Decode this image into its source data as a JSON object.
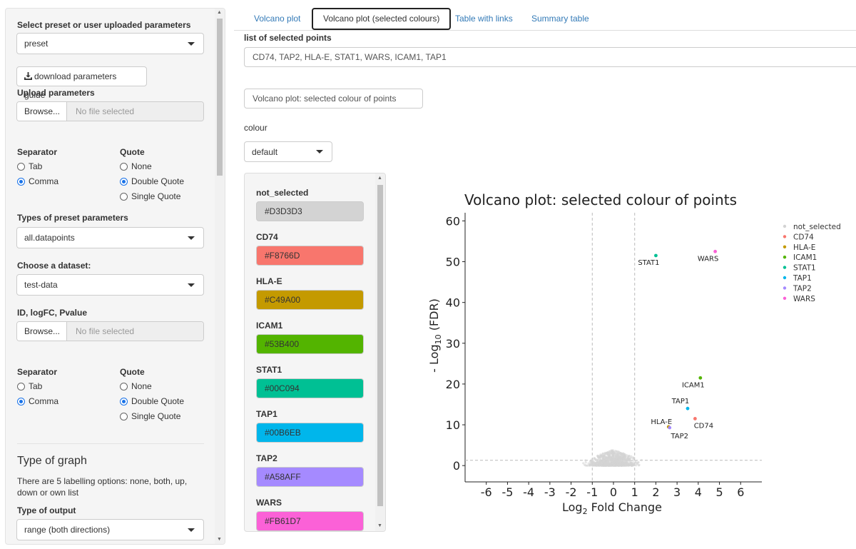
{
  "sidebar": {
    "preset_label": "Select preset or user uploaded parameters",
    "preset_value": "preset",
    "download_button": "download parameters guide",
    "upload_label": "Upload parameters",
    "browse_label": "Browse...",
    "no_file": "No file selected",
    "separator_label": "Separator",
    "quote_label": "Quote",
    "sep_tab": "Tab",
    "sep_comma": "Comma",
    "quote_none": "None",
    "quote_double": "Double Quote",
    "quote_single": "Single Quote",
    "types_label": "Types of preset parameters",
    "types_value": "all.datapoints",
    "dataset_label": "Choose a dataset:",
    "dataset_value": "test-data",
    "idfc_label": "ID, logFC, Pvalue",
    "graph_heading": "Type of graph",
    "graph_help": "There are 5 labelling options: none, both, up, down or own list",
    "output_label": "Type of output",
    "output_value": "range (both directions)"
  },
  "tabs": [
    {
      "label": "Volcano plot"
    },
    {
      "label": "Volcano plot (selected colours)"
    },
    {
      "label": "Table with links"
    },
    {
      "label": "Summary table"
    }
  ],
  "main": {
    "selected_points_label": "list of selected points",
    "selected_points_value": "CD74, TAP2, HLA-E, STAT1, WARS, ICAM1, TAP1",
    "title_input_value": "Volcano plot: selected colour of points",
    "colour_label": "colour",
    "colour_value": "default",
    "colour_items": [
      {
        "name": "not_selected",
        "hex": "#D3D3D3"
      },
      {
        "name": "CD74",
        "hex": "#F8766D"
      },
      {
        "name": "HLA-E",
        "hex": "#C49A00"
      },
      {
        "name": "ICAM1",
        "hex": "#53B400"
      },
      {
        "name": "STAT1",
        "hex": "#00C094"
      },
      {
        "name": "TAP1",
        "hex": "#00B6EB"
      },
      {
        "name": "TAP2",
        "hex": "#A58AFF"
      },
      {
        "name": "WARS",
        "hex": "#FB61D7"
      }
    ]
  },
  "chart_data": {
    "type": "scatter",
    "title": "Volcano plot: selected colour of points",
    "xlabel": "Log2 Fold Change",
    "ylabel": "- Log10 (FDR)",
    "xlim": [
      -7,
      7
    ],
    "ylim": [
      -4,
      62
    ],
    "x_ticks": [
      -6,
      -5,
      -4,
      -3,
      -2,
      -1,
      0,
      1,
      2,
      3,
      4,
      5,
      6
    ],
    "y_ticks": [
      0,
      10,
      20,
      30,
      40,
      50,
      60
    ],
    "threshold_lines": {
      "x": [
        -1,
        1
      ],
      "y": 1.3
    },
    "grid": false,
    "legend_position": "right",
    "legend": [
      "not_selected",
      "CD74",
      "HLA-E",
      "ICAM1",
      "STAT1",
      "TAP1",
      "TAP2",
      "WARS"
    ],
    "colors": {
      "not_selected": "#D3D3D3",
      "CD74": "#F8766D",
      "HLA-E": "#C49A00",
      "ICAM1": "#53B400",
      "STAT1": "#00C094",
      "TAP1": "#00B6EB",
      "TAP2": "#A58AFF",
      "WARS": "#FB61D7"
    },
    "points": [
      {
        "label": "STAT1",
        "x": 2.0,
        "y": 51.5
      },
      {
        "label": "WARS",
        "x": 4.8,
        "y": 52.5
      },
      {
        "label": "ICAM1",
        "x": 4.1,
        "y": 21.5
      },
      {
        "label": "TAP1",
        "x": 3.5,
        "y": 14.0
      },
      {
        "label": "CD74",
        "x": 3.85,
        "y": 11.5
      },
      {
        "label": "HLA-E",
        "x": 2.6,
        "y": 9.5
      },
      {
        "label": "TAP2",
        "x": 2.65,
        "y": 9.3
      }
    ],
    "background_cloud": {
      "x_range": [
        -1.5,
        1.5
      ],
      "y_range": [
        0,
        3
      ]
    }
  }
}
